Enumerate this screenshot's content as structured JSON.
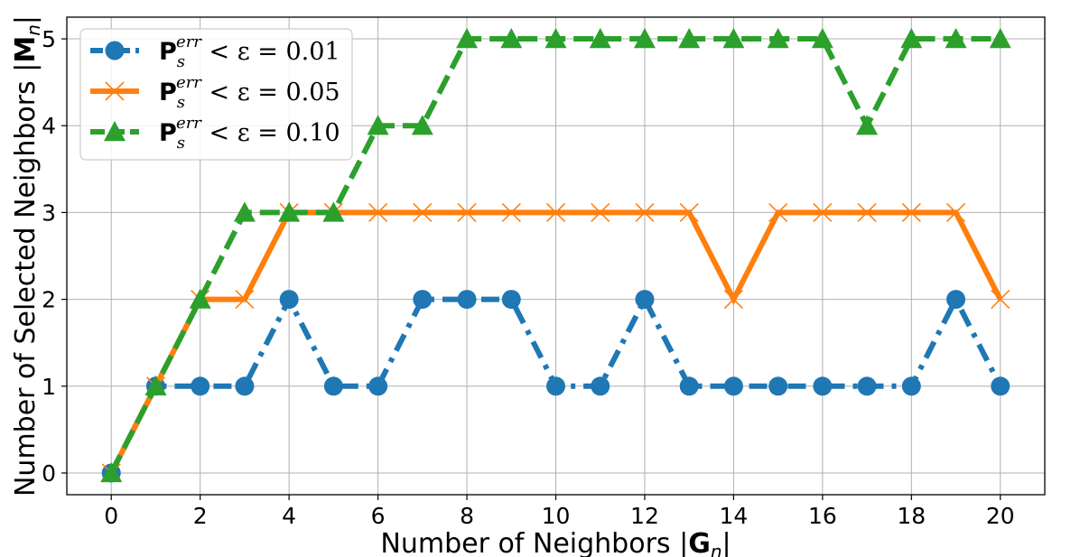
{
  "chart_data": {
    "type": "line",
    "xlabel_text": "Number of Neighbors |",
    "xlabel_symbol": "G",
    "xlabel_subscript": "n",
    "xlabel_end": "|",
    "ylabel_text": "Number of Selected Neighbors |",
    "ylabel_symbol": "M",
    "ylabel_subscript": "n",
    "ylabel_end": "|",
    "xlim": [
      -1,
      21
    ],
    "ylim": [
      -0.25,
      5.25
    ],
    "xticks": [
      0,
      2,
      4,
      6,
      8,
      10,
      12,
      14,
      16,
      18,
      20
    ],
    "yticks": [
      0,
      1,
      2,
      3,
      4,
      5
    ],
    "grid": true,
    "legend_position": "top-left",
    "x": [
      0,
      1,
      2,
      3,
      4,
      5,
      6,
      7,
      8,
      9,
      10,
      11,
      12,
      13,
      14,
      15,
      16,
      17,
      18,
      19,
      20
    ],
    "series": [
      {
        "legend_symbol": "P",
        "legend_sub": "s",
        "legend_sup": "err",
        "legend_rest": " < ε = 0.01",
        "color": "#1f77b4",
        "linestyle": "dashdot",
        "marker": "circle",
        "values": [
          0,
          1,
          1,
          1,
          2,
          1,
          1,
          2,
          2,
          2,
          1,
          1,
          2,
          1,
          1,
          1,
          1,
          1,
          1,
          2,
          1
        ]
      },
      {
        "legend_symbol": "P",
        "legend_sub": "s",
        "legend_sup": "err",
        "legend_rest": " < ε = 0.05",
        "color": "#ff7f0e",
        "linestyle": "solid",
        "marker": "x",
        "values": [
          0,
          1,
          2,
          2,
          3,
          3,
          3,
          3,
          3,
          3,
          3,
          3,
          3,
          3,
          2,
          3,
          3,
          3,
          3,
          3,
          2
        ]
      },
      {
        "legend_symbol": "P",
        "legend_sub": "s",
        "legend_sup": "err",
        "legend_rest": " < ε = 0.10",
        "color": "#2ca02c",
        "linestyle": "dashed",
        "marker": "triangle",
        "values": [
          0,
          1,
          2,
          3,
          3,
          3,
          4,
          4,
          5,
          5,
          5,
          5,
          5,
          5,
          5,
          5,
          5,
          4,
          5,
          5,
          5
        ]
      }
    ]
  }
}
